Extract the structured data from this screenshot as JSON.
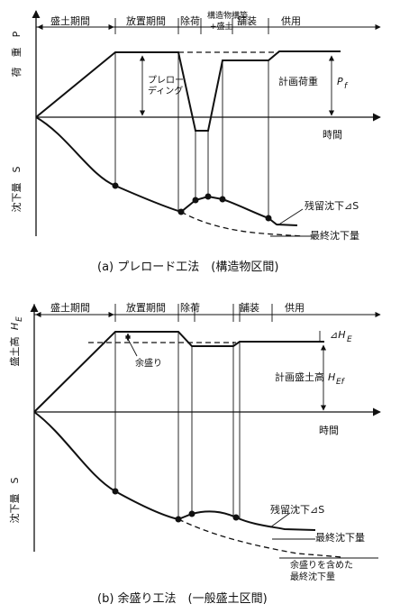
{
  "figure_a": {
    "phases": [
      "盛土期間",
      "放置期間",
      "除荷",
      "構造物構築",
      "+盛土",
      "舗装",
      "供用"
    ],
    "y_axis_top": "荷　重　P",
    "y_axis_bottom": "沈下量　S",
    "x_axis": "時間",
    "preloading": "プレロー",
    "preloading2": "ディング",
    "planned_load": "計画荷重",
    "planned_load_sym": "P",
    "planned_load_sub": "f",
    "residual": "残留沈下⊿S",
    "final": "最終沈下量",
    "caption": "(a)  プレロード工法　(構造物区間)"
  },
  "figure_b": {
    "phases": [
      "盛土期間",
      "放置期間",
      "除荷",
      "舗装",
      "供用"
    ],
    "y_axis_top": "盛土高",
    "y_axis_top_sym": "H",
    "y_axis_top_sub": "E",
    "y_axis_bottom": "沈下量　S",
    "x_axis": "時間",
    "delta_h": "⊿H",
    "delta_h_sub": "E",
    "surcharge": "余盛り",
    "planned_height": "計画盛土高",
    "planned_height_sym": "H",
    "planned_height_sub": "Ef",
    "residual": "残留沈下⊿S",
    "final": "最終沈下量",
    "final_incl_1": "余盛りを含めた",
    "final_incl_2": "最終沈下量",
    "caption": "(b)  余盛り工法　(一般盛土区間)"
  }
}
